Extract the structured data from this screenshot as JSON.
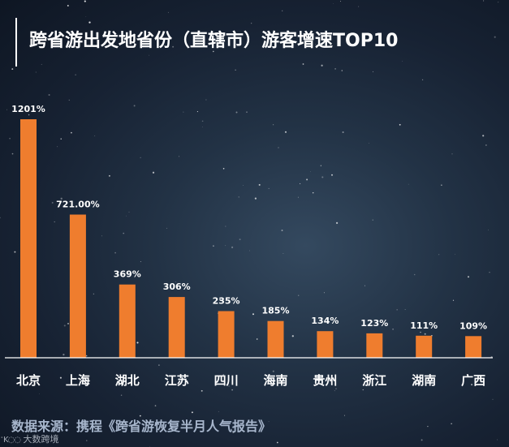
{
  "title": "跨省游出发地省份（直辖市）游客增速TOP10",
  "source": "数据来源：携程《跨省游恢复半月人气报告》",
  "watermark": {
    "text": "大数跨境"
  },
  "colors": {
    "bar": "#ef7d2e",
    "text": "#ffffff",
    "source_text": "#a7b6cc"
  },
  "chart_data": {
    "type": "bar",
    "title": "跨省游出发地省份（直辖市）游客增速TOP10",
    "categories": [
      "北京",
      "上海",
      "湖北",
      "江苏",
      "四川",
      "海南",
      "贵州",
      "浙江",
      "湖南",
      "广西"
    ],
    "values": [
      1201,
      721,
      369,
      306,
      235,
      185,
      134,
      123,
      111,
      109
    ],
    "value_labels": [
      "1201%",
      "721.00%",
      "369%",
      "306%",
      "235%",
      "185%",
      "134%",
      "123%",
      "111%",
      "109%"
    ],
    "unit": "%",
    "xlabel": "",
    "ylabel": "",
    "ylim": [
      0,
      1201
    ],
    "grid": false,
    "legend": "none"
  }
}
